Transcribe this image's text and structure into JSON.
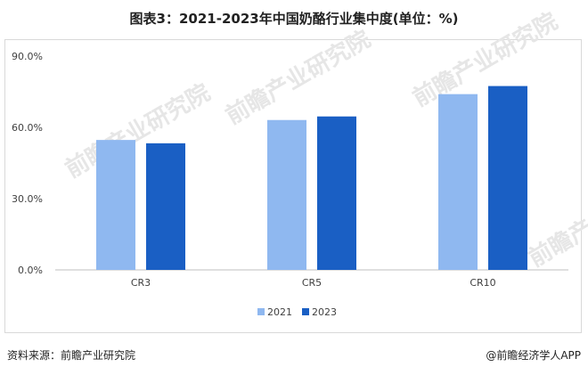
{
  "title": "图表3：2021-2023年中国奶酪行业集中度(单位：%)",
  "chart_data": {
    "type": "bar",
    "categories": [
      "CR3",
      "CR5",
      "CR10"
    ],
    "series": [
      {
        "name": "2021",
        "values": [
          54.7,
          63.1,
          74.0
        ],
        "color": "#8fb8f0"
      },
      {
        "name": "2023",
        "values": [
          53.3,
          64.6,
          77.4
        ],
        "color": "#1a5fc4"
      }
    ],
    "y_ticks": [
      "0.0%",
      "30.0%",
      "60.0%",
      "90.0%"
    ],
    "ylim": [
      0,
      90
    ],
    "grid": false,
    "legend": "bottom-center"
  },
  "watermark": "前瞻产业研究院",
  "footer": {
    "source": "资料来源：前瞻产业研究院",
    "brand": "@前瞻经济学人APP"
  }
}
